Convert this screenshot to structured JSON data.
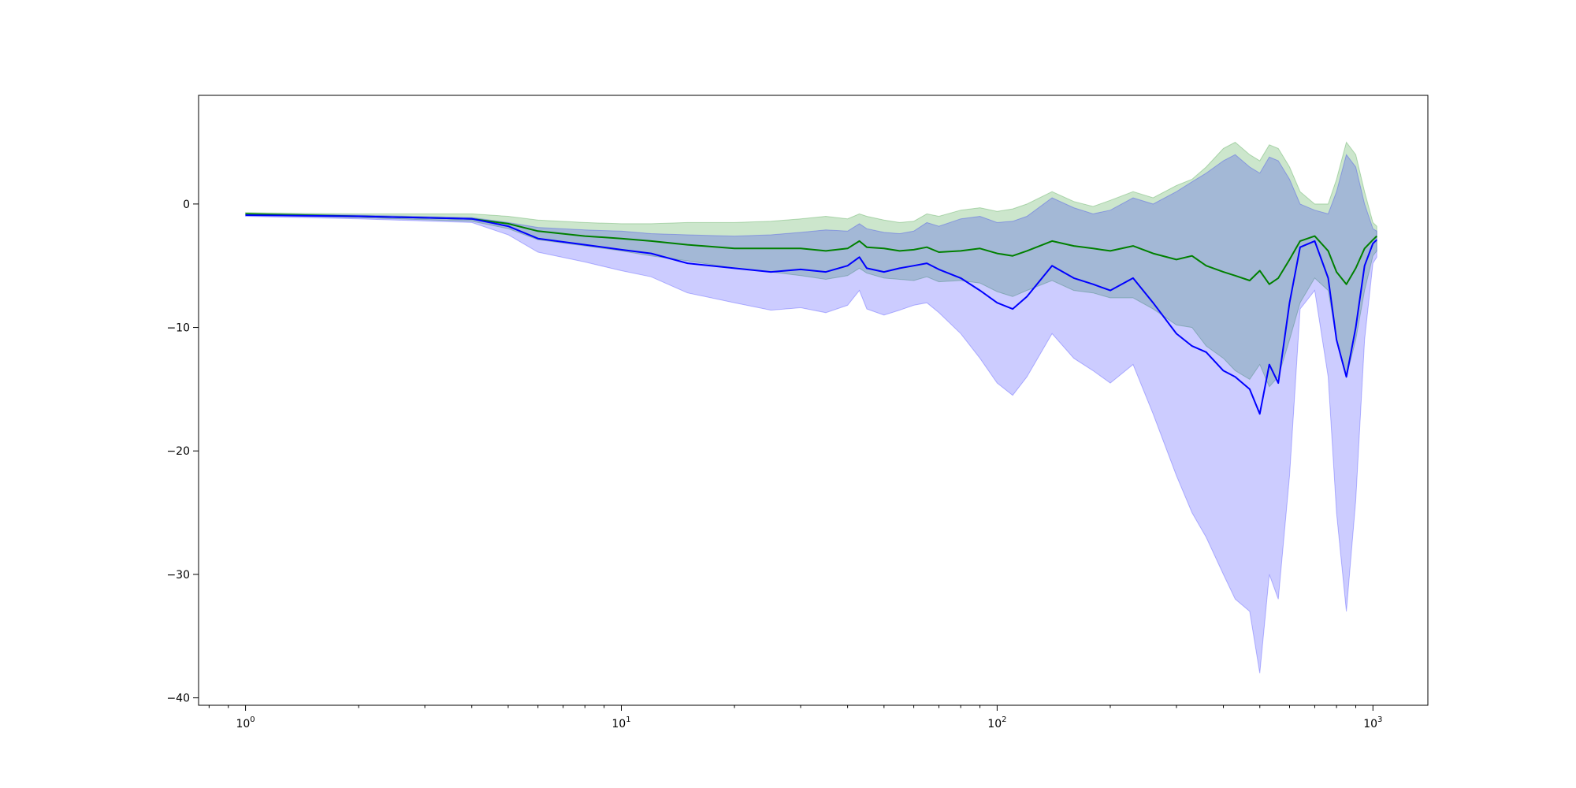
{
  "chart_data": {
    "type": "line",
    "title": "",
    "xlabel": "",
    "ylabel": "",
    "xscale": "log",
    "xlim": [
      0.75,
      1400
    ],
    "ylim": [
      -40.6,
      8.8
    ],
    "grid": false,
    "legend": "none",
    "x_ticks": [
      1,
      10,
      100,
      1000
    ],
    "x_tick_labels": [
      "10",
      "10",
      "10",
      "10"
    ],
    "x_tick_exponents": [
      "0",
      "1",
      "2",
      "3"
    ],
    "y_ticks": [
      0,
      -10,
      -20,
      -30,
      -40
    ],
    "y_tick_labels": [
      "0",
      "−10",
      "−20",
      "−30",
      "−40"
    ],
    "series": [
      {
        "color": "#008000",
        "band_color": "#008000",
        "x": [
          1,
          2,
          4,
          5,
          6,
          8,
          10,
          12,
          15,
          20,
          25,
          30,
          35,
          40,
          43,
          45,
          50,
          55,
          60,
          65,
          70,
          80,
          90,
          100,
          110,
          120,
          140,
          160,
          180,
          200,
          230,
          260,
          300,
          330,
          360,
          400,
          430,
          470,
          500,
          530,
          560,
          600,
          640,
          700,
          760,
          800,
          850,
          900,
          950,
          1000,
          1024
        ],
        "y": [
          -0.8,
          -1.0,
          -1.2,
          -1.6,
          -2.2,
          -2.6,
          -2.8,
          -3.0,
          -3.3,
          -3.6,
          -3.6,
          -3.6,
          -3.8,
          -3.6,
          -3.0,
          -3.5,
          -3.6,
          -3.8,
          -3.7,
          -3.5,
          -3.9,
          -3.8,
          -3.6,
          -4.0,
          -4.2,
          -3.8,
          -3.0,
          -3.4,
          -3.6,
          -3.8,
          -3.4,
          -4.0,
          -4.5,
          -4.2,
          -5.0,
          -5.5,
          -5.8,
          -6.2,
          -5.4,
          -6.5,
          -6.0,
          -4.5,
          -3.0,
          -2.6,
          -3.8,
          -5.5,
          -6.5,
          -5.2,
          -3.6,
          -2.9,
          -2.6
        ],
        "upper": [
          -0.7,
          -0.8,
          -0.8,
          -1.0,
          -1.3,
          -1.5,
          -1.6,
          -1.6,
          -1.5,
          -1.5,
          -1.4,
          -1.2,
          -1.0,
          -1.2,
          -0.8,
          -1.0,
          -1.3,
          -1.5,
          -1.4,
          -0.8,
          -1.0,
          -0.5,
          -0.3,
          -0.6,
          -0.4,
          0.0,
          1.0,
          0.2,
          -0.2,
          0.3,
          1.0,
          0.5,
          1.5,
          2.0,
          3.0,
          4.5,
          5.0,
          4.0,
          3.5,
          4.8,
          4.5,
          3.0,
          1.0,
          0.0,
          0.0,
          2.0,
          5.0,
          4.0,
          1.0,
          -1.5,
          -1.8
        ],
        "lower": [
          -0.9,
          -1.1,
          -1.4,
          -2.0,
          -2.9,
          -3.4,
          -3.8,
          -4.2,
          -4.6,
          -5.2,
          -5.5,
          -5.8,
          -6.1,
          -5.8,
          -5.2,
          -5.6,
          -6.0,
          -6.1,
          -6.2,
          -5.9,
          -6.3,
          -6.2,
          -6.4,
          -7.1,
          -7.5,
          -7.0,
          -6.2,
          -7.0,
          -7.2,
          -7.6,
          -7.6,
          -8.5,
          -9.8,
          -10.0,
          -11.5,
          -12.5,
          -13.5,
          -14.2,
          -13.0,
          -14.8,
          -14.0,
          -11.0,
          -8.0,
          -6.0,
          -7.0,
          -11.0,
          -14.0,
          -11.0,
          -7.0,
          -4.2,
          -3.8
        ]
      },
      {
        "color": "#0000ff",
        "band_color": "#0000ff",
        "x": [
          1,
          2,
          4,
          5,
          6,
          8,
          10,
          12,
          15,
          20,
          25,
          30,
          35,
          40,
          43,
          45,
          50,
          55,
          60,
          65,
          70,
          80,
          90,
          100,
          110,
          120,
          140,
          160,
          180,
          200,
          230,
          260,
          300,
          330,
          360,
          400,
          430,
          470,
          500,
          530,
          560,
          600,
          640,
          700,
          760,
          800,
          850,
          900,
          950,
          1000,
          1024
        ],
        "y": [
          -0.9,
          -1.0,
          -1.2,
          -1.8,
          -2.8,
          -3.3,
          -3.7,
          -4.0,
          -4.8,
          -5.2,
          -5.5,
          -5.3,
          -5.5,
          -5.0,
          -4.3,
          -5.2,
          -5.5,
          -5.2,
          -5.0,
          -4.8,
          -5.3,
          -6.0,
          -7.0,
          -8.0,
          -8.5,
          -7.5,
          -5.0,
          -6.0,
          -6.5,
          -7.0,
          -6.0,
          -8.0,
          -10.5,
          -11.5,
          -12.0,
          -13.5,
          -14.0,
          -15.0,
          -17.0,
          -13.0,
          -14.5,
          -8.0,
          -3.5,
          -3.0,
          -6.0,
          -11.0,
          -14.0,
          -10.0,
          -5.0,
          -3.2,
          -2.9
        ],
        "upper": [
          -0.8,
          -0.9,
          -1.1,
          -1.5,
          -1.9,
          -2.1,
          -2.2,
          -2.4,
          -2.5,
          -2.6,
          -2.5,
          -2.3,
          -2.1,
          -2.2,
          -1.6,
          -2.0,
          -2.3,
          -2.4,
          -2.2,
          -1.5,
          -1.8,
          -1.2,
          -1.0,
          -1.5,
          -1.4,
          -1.0,
          0.5,
          -0.3,
          -0.8,
          -0.5,
          0.5,
          0.0,
          1.0,
          1.8,
          2.5,
          3.5,
          4.0,
          3.0,
          2.5,
          3.8,
          3.5,
          2.0,
          0.0,
          -0.5,
          -0.8,
          1.0,
          4.0,
          3.0,
          0.0,
          -2.0,
          -2.2
        ],
        "lower": [
          -1.0,
          -1.2,
          -1.5,
          -2.5,
          -3.9,
          -4.7,
          -5.4,
          -5.9,
          -7.2,
          -8.0,
          -8.6,
          -8.4,
          -8.8,
          -8.2,
          -7.0,
          -8.5,
          -9.0,
          -8.6,
          -8.2,
          -8.0,
          -8.8,
          -10.5,
          -12.5,
          -14.5,
          -15.5,
          -14.0,
          -10.5,
          -12.5,
          -13.5,
          -14.5,
          -13.0,
          -17.0,
          -22.0,
          -25.0,
          -27.0,
          -30.0,
          -32.0,
          -33.0,
          -38.0,
          -30.0,
          -32.0,
          -22.0,
          -8.5,
          -7.0,
          -14.0,
          -25.0,
          -33.0,
          -24.0,
          -11.0,
          -4.8,
          -4.3
        ]
      }
    ]
  }
}
